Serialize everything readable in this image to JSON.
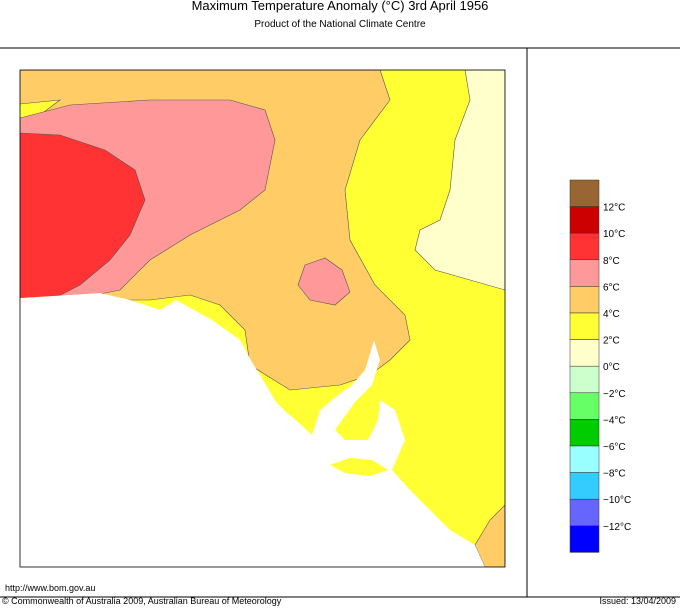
{
  "header": {
    "title": "Maximum Temperature Anomaly (°C)  3rd April 1956",
    "subtitle": "Product of the National Climate Centre"
  },
  "legend": {
    "colors": [
      "#996633",
      "#cc0000",
      "#ff3333",
      "#ff9999",
      "#ffcc66",
      "#ffff33",
      "#ffffcc",
      "#ccffcc",
      "#66ff66",
      "#00cc00",
      "#99ffff",
      "#33ccff",
      "#6666ff",
      "#0000ff"
    ],
    "labels": [
      "12°C",
      "10°C",
      "8°C",
      "6°C",
      "4°C",
      "2°C",
      "0°C",
      "−2°C",
      "−4°C",
      "−6°C",
      "−8°C",
      "−10°C",
      "−12°C"
    ]
  },
  "footer": {
    "url": "http://www.bom.gov.au",
    "copyright": "© Commonwealth of Australia 2009, Australian Bureau of Meteorology",
    "issued": "Issued: 13/04/2009"
  }
}
